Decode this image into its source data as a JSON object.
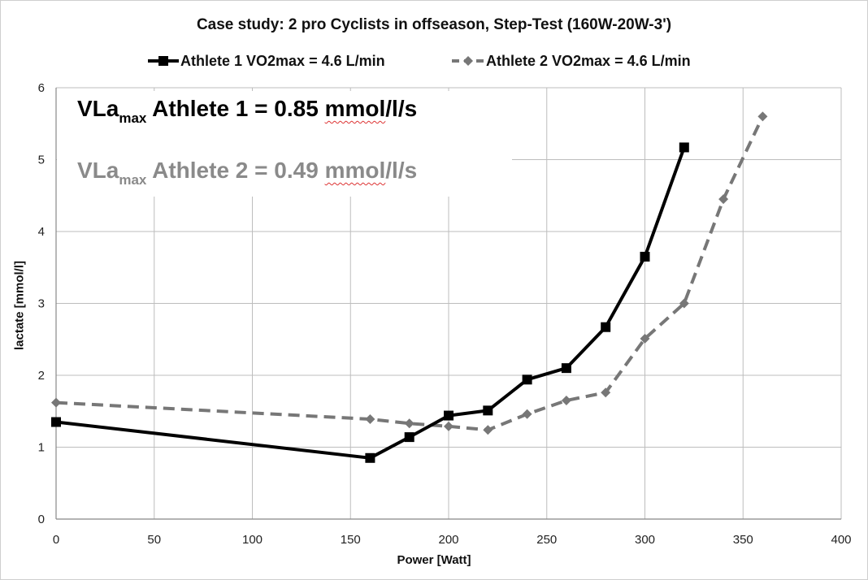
{
  "chart_data": {
    "type": "line",
    "title": "Case study: 2 pro Cyclists in offseason, Step-Test (160W-20W-3')",
    "xlabel": "Power [Watt]",
    "ylabel": "lactate [mmol/l]",
    "xlim": [
      0,
      400
    ],
    "ylim": [
      0,
      6
    ],
    "x_ticks": [
      "0",
      "50",
      "100",
      "150",
      "200",
      "250",
      "300",
      "350",
      "400"
    ],
    "y_ticks": [
      "0",
      "1",
      "2",
      "3",
      "4",
      "5",
      "6"
    ],
    "grid": true,
    "legend_position": "top",
    "series": [
      {
        "name": "Athlete 1 VO2max = 4.6 L/min",
        "color": "#000000",
        "line_style": "solid",
        "marker": "square",
        "x": [
          0,
          160,
          180,
          200,
          220,
          240,
          260,
          280,
          300,
          320
        ],
        "y": [
          1.35,
          0.85,
          1.14,
          1.44,
          1.51,
          1.94,
          2.1,
          2.67,
          3.65,
          5.17
        ]
      },
      {
        "name": "Athlete 2 VO2max = 4.6 L/min",
        "color": "#777777",
        "line_style": "dashed",
        "marker": "diamond",
        "x": [
          0,
          160,
          180,
          200,
          220,
          240,
          260,
          280,
          300,
          320,
          340,
          360
        ],
        "y": [
          1.62,
          1.39,
          1.33,
          1.29,
          1.24,
          1.46,
          1.65,
          1.76,
          2.51,
          3.0,
          4.45,
          5.6
        ]
      }
    ],
    "annotations": {
      "athlete1": {
        "prefix": "VLa",
        "sub": "max",
        "text": " Athlete 1 = 0.85 ",
        "unit": "mmol",
        "suffix": "/l/s"
      },
      "athlete2": {
        "prefix": "VLa",
        "sub": "max",
        "text": " Athlete 2 = 0.49 ",
        "unit": "mmol",
        "suffix": "/l/s"
      }
    }
  }
}
